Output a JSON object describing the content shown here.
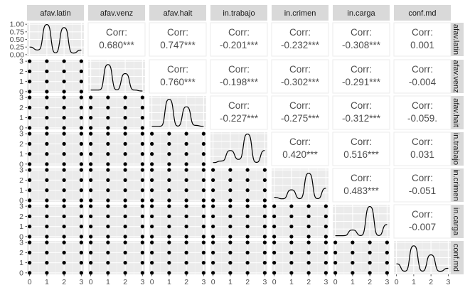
{
  "chart_data": {
    "type": "pairs",
    "variables": [
      "afav.latin",
      "afav.venz",
      "afav.hait",
      "in.trabajo",
      "in.crimen",
      "in.carga",
      "conf.md"
    ],
    "diagonal_type": "density",
    "lower_type": "scatter",
    "upper_type": "correlation",
    "corr_label": "Corr:",
    "density_axis_ticks": [
      "1.00",
      "0.75",
      "0.50",
      "0.25",
      "0.00"
    ],
    "x_ticks": [
      0,
      1,
      2,
      3
    ],
    "y_ticks": [
      0,
      1,
      2,
      3
    ],
    "x_ranges": [
      [
        0,
        3
      ],
      [
        0,
        3
      ],
      [
        0,
        3
      ],
      [
        0,
        3
      ],
      [
        0,
        3
      ],
      [
        0,
        3
      ],
      [
        0,
        3
      ]
    ],
    "grid": true,
    "correlations": [
      {
        "row": 0,
        "col": 1,
        "label": "0.680***"
      },
      {
        "row": 0,
        "col": 2,
        "label": "0.747***"
      },
      {
        "row": 0,
        "col": 3,
        "label": "-0.201***"
      },
      {
        "row": 0,
        "col": 4,
        "label": "-0.232***"
      },
      {
        "row": 0,
        "col": 5,
        "label": "-0.308***"
      },
      {
        "row": 0,
        "col": 6,
        "label": "0.001"
      },
      {
        "row": 1,
        "col": 2,
        "label": "0.760***"
      },
      {
        "row": 1,
        "col": 3,
        "label": "-0.198***"
      },
      {
        "row": 1,
        "col": 4,
        "label": "-0.302***"
      },
      {
        "row": 1,
        "col": 5,
        "label": "-0.291***"
      },
      {
        "row": 1,
        "col": 6,
        "label": "-0.004"
      },
      {
        "row": 2,
        "col": 3,
        "label": "-0.227***"
      },
      {
        "row": 2,
        "col": 4,
        "label": "-0.275***"
      },
      {
        "row": 2,
        "col": 5,
        "label": "-0.312***"
      },
      {
        "row": 2,
        "col": 6,
        "label": "-0.059."
      },
      {
        "row": 3,
        "col": 4,
        "label": "0.420***"
      },
      {
        "row": 3,
        "col": 5,
        "label": "0.516***"
      },
      {
        "row": 3,
        "col": 6,
        "label": "0.031"
      },
      {
        "row": 4,
        "col": 5,
        "label": "0.483***"
      },
      {
        "row": 4,
        "col": 6,
        "label": "-0.051"
      },
      {
        "row": 5,
        "col": 6,
        "label": "-0.007"
      }
    ],
    "densities": [
      {
        "var": "afav.latin",
        "x": [
          0,
          0.5,
          1,
          1.5,
          2,
          2.5,
          3
        ],
        "y": [
          0.25,
          0.15,
          1.0,
          0.05,
          0.9,
          0.05,
          0.15
        ]
      },
      {
        "var": "afav.venz",
        "x": [
          0,
          0.5,
          1,
          1.5,
          2,
          2.5,
          3
        ],
        "y": [
          0.05,
          0.05,
          0.9,
          0.05,
          0.6,
          0.05,
          0.02
        ]
      },
      {
        "var": "afav.hait",
        "x": [
          0,
          0.5,
          1,
          1.5,
          2,
          2.5,
          3
        ],
        "y": [
          0.05,
          0.05,
          0.95,
          0.05,
          0.7,
          0.08,
          0.05
        ]
      },
      {
        "var": "in.trabajo",
        "x": [
          0,
          0.5,
          1,
          1.5,
          2,
          2.5,
          3
        ],
        "y": [
          0.05,
          0.1,
          0.45,
          0.15,
          1.0,
          0.05,
          0.45
        ]
      },
      {
        "var": "in.crimen",
        "x": [
          0,
          0.5,
          1,
          1.5,
          2,
          2.5,
          3
        ],
        "y": [
          0.1,
          0.05,
          0.35,
          0.05,
          0.9,
          0.05,
          0.4
        ]
      },
      {
        "var": "in.carga",
        "x": [
          0,
          0.5,
          1,
          1.5,
          2,
          2.5,
          3
        ],
        "y": [
          0.03,
          0.03,
          0.22,
          0.03,
          1.0,
          0.03,
          0.4
        ]
      },
      {
        "var": "conf.md",
        "x": [
          0,
          0.5,
          1,
          1.5,
          2,
          2.5,
          3
        ],
        "y": [
          0.3,
          0.05,
          0.9,
          0.05,
          0.6,
          0.05,
          0.15
        ]
      }
    ],
    "scatter_points": [
      0,
      1,
      2,
      3
    ]
  }
}
